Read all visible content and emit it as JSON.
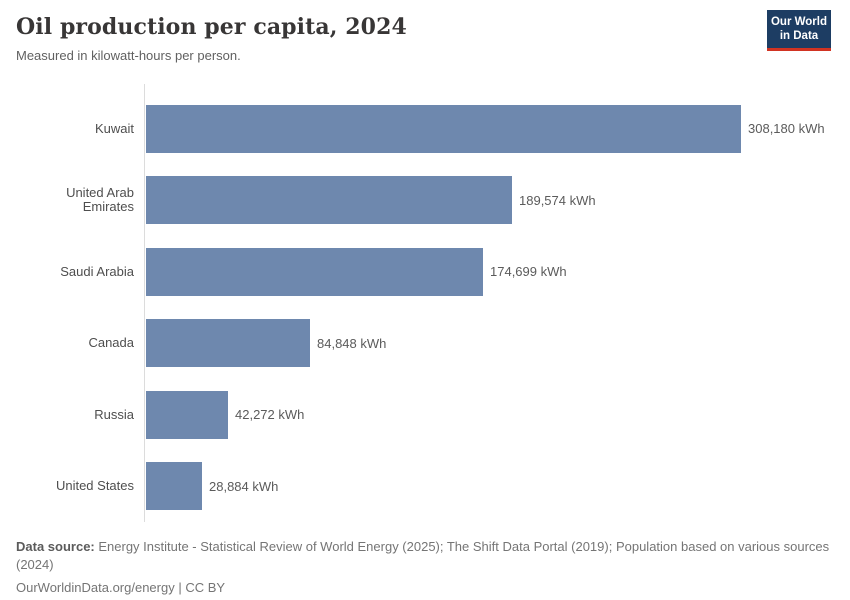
{
  "header": {
    "title": "Oil production per capita, 2024",
    "subtitle": "Measured in kilowatt-hours per person."
  },
  "logo": {
    "line1": "Our World",
    "line2": "in Data"
  },
  "chart_data": {
    "type": "bar",
    "orientation": "horizontal",
    "title": "Oil production per capita, 2024",
    "subtitle": "Measured in kilowatt-hours per person.",
    "unit": "kWh",
    "categories": [
      "Kuwait",
      "United Arab Emirates",
      "Saudi Arabia",
      "Canada",
      "Russia",
      "United States"
    ],
    "values": [
      308180,
      189574,
      174699,
      84848,
      42272,
      28884
    ],
    "value_labels": [
      "308,180 kWh",
      "189,574 kWh",
      "174,699 kWh",
      "84,848 kWh",
      "42,272 kWh",
      "28,884 kWh"
    ],
    "xlim": [
      0,
      308180
    ],
    "grid": false,
    "legend": "none",
    "bar_color": "#6e88ae",
    "axis_color": "#dcdcdc"
  },
  "footer": {
    "source_label": "Data source:",
    "source_text": " Energy Institute - Statistical Review of World Energy (2025); The Shift Data Portal (2019); Population based on various sources (2024)",
    "citation": "OurWorldinData.org/energy | CC BY"
  }
}
